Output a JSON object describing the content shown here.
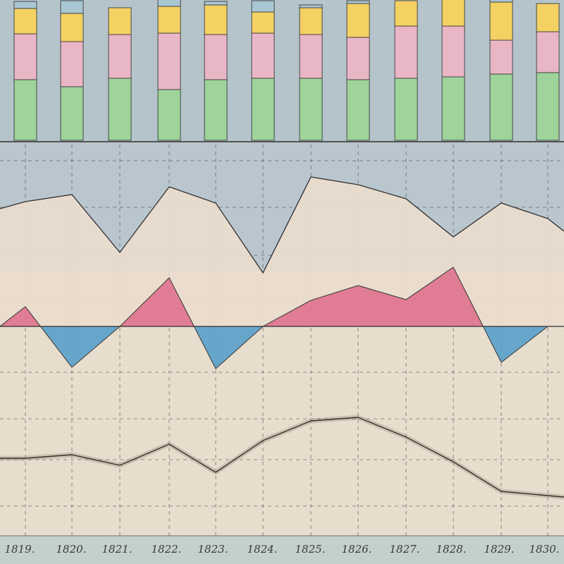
{
  "chart_data": [
    {
      "type": "bar",
      "stacked": true,
      "categories": [
        "1819",
        "1820",
        "1821",
        "1822",
        "1823",
        "1824",
        "1825",
        "1826",
        "1827",
        "1828",
        "1829",
        "1830"
      ],
      "series": [
        {
          "color": "#9ed39a",
          "values": [
            86,
            76,
            88,
            72,
            86,
            88,
            88,
            86,
            88,
            90,
            94,
            96
          ]
        },
        {
          "color": "#e9b6c6",
          "values": [
            65,
            64,
            62,
            80,
            64,
            64,
            62,
            60,
            74,
            72,
            48,
            58
          ]
        },
        {
          "color": "#f3d163",
          "values": [
            36,
            40,
            38,
            38,
            42,
            30,
            38,
            48,
            36,
            38,
            54,
            40
          ]
        },
        {
          "color": "#a9c6d3",
          "values": [
            10,
            18,
            0,
            10,
            5,
            16,
            4,
            4,
            0,
            0,
            4,
            0
          ]
        }
      ],
      "grid": false
    },
    {
      "type": "area",
      "categories": [
        "1819",
        "1820",
        "1821",
        "1822",
        "1823",
        "1824",
        "1825",
        "1826",
        "1827",
        "1828",
        "1829",
        "1830"
      ],
      "series": [
        {
          "color": "#e9dccd",
          "values": [
            286,
            276,
            358,
            265,
            288,
            387,
            251,
            262,
            282,
            336,
            288,
            310
          ]
        }
      ],
      "background": "#b9c6cd",
      "grid": true
    },
    {
      "type": "area",
      "categories": [
        "1819",
        "1820",
        "1821",
        "1822",
        "1823",
        "1824",
        "1825",
        "1826",
        "1827",
        "1828",
        "1829",
        "1830"
      ],
      "series": [
        {
          "values": [
            28,
            -58,
            0,
            69,
            -60,
            0,
            37,
            58,
            38,
            84,
            -51,
            0
          ]
        }
      ],
      "colors": {
        "positive": "#e0738e",
        "negative": "#5aa1cb"
      },
      "grid": true
    },
    {
      "type": "line",
      "categories": [
        "1819",
        "1820",
        "1821",
        "1822",
        "1823",
        "1824",
        "1825",
        "1826",
        "1827",
        "1828",
        "1829",
        "1830"
      ],
      "series": [
        {
          "color": "#3a2f2a",
          "values": [
            650,
            645,
            660,
            630,
            670,
            625,
            597,
            592,
            620,
            655,
            697,
            703
          ]
        }
      ],
      "grid": true
    }
  ],
  "x_axis": {
    "tick_labels": [
      "1819.",
      "1820.",
      "1821.",
      "1822.",
      "1823.",
      "1824.",
      "1825.",
      "1826.",
      "1827.",
      "1828.",
      "1829.",
      "1830."
    ]
  }
}
